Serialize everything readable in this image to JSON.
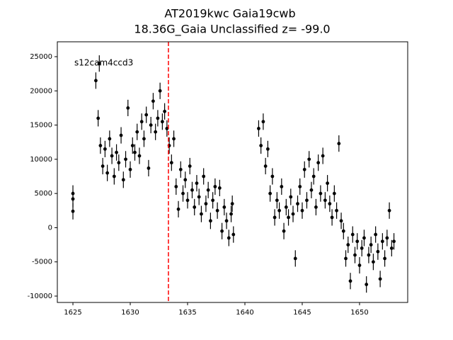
{
  "chart_data": {
    "type": "errorbar-scatter",
    "title": [
      "AT2019kwc  Gaia19cwb",
      "18.36G_Gaia Unclassified z= -99.0"
    ],
    "annotation": "s12cam4ccd3",
    "vline": 1633.33,
    "vline_color": "#ff0000",
    "xlim": [
      1623.64,
      1654.2
    ],
    "ylim": [
      -10932,
      27175
    ],
    "xticks": [
      1625,
      1630,
      1635,
      1640,
      1645,
      1650
    ],
    "yticks": [
      -10000,
      -5000,
      0,
      5000,
      10000,
      15000,
      20000,
      25000
    ],
    "series": [
      {
        "color": "#000000",
        "error": 1200,
        "x": [
          1625.0,
          1625.0,
          1625.0,
          1627.0,
          1627.2,
          1627.3,
          1627.4,
          1627.6,
          1627.8,
          1628.0,
          1628.2,
          1628.4,
          1628.6,
          1628.8,
          1629.0,
          1629.2,
          1629.4,
          1629.6,
          1629.8,
          1630.0,
          1630.2,
          1630.4,
          1630.6,
          1630.8,
          1631.0,
          1631.2,
          1631.4,
          1631.6,
          1631.8,
          1632.0,
          1632.2,
          1632.4,
          1632.6,
          1632.8,
          1633.0,
          1633.2,
          1633.4,
          1633.6,
          1633.8,
          1634.0,
          1634.2,
          1634.4,
          1634.6,
          1634.8,
          1635.0,
          1635.2,
          1635.4,
          1635.6,
          1635.8,
          1636.0,
          1636.2,
          1636.4,
          1636.6,
          1636.8,
          1637.0,
          1637.2,
          1637.4,
          1637.6,
          1637.8,
          1638.0,
          1638.2,
          1638.4,
          1638.6,
          1638.8,
          1638.9,
          1639.0,
          1641.2,
          1641.4,
          1641.6,
          1641.8,
          1642.0,
          1642.2,
          1642.4,
          1642.6,
          1642.8,
          1643.0,
          1643.2,
          1643.4,
          1643.6,
          1643.8,
          1644.0,
          1644.2,
          1644.4,
          1644.6,
          1644.8,
          1645.0,
          1645.2,
          1645.4,
          1645.6,
          1645.8,
          1646.0,
          1646.2,
          1646.4,
          1646.6,
          1646.8,
          1647.0,
          1647.2,
          1647.4,
          1647.6,
          1647.8,
          1648.0,
          1648.2,
          1648.4,
          1648.6,
          1648.8,
          1649.0,
          1649.2,
          1649.4,
          1649.6,
          1649.8,
          1650.0,
          1650.2,
          1650.4,
          1650.6,
          1650.8,
          1651.0,
          1651.2,
          1651.4,
          1651.6,
          1651.8,
          1652.0,
          1652.2,
          1652.4,
          1652.6,
          1652.8,
          1653.0
        ],
        "values": [
          5000,
          4200,
          2400,
          21500,
          16000,
          24000,
          12000,
          9000,
          11500,
          8000,
          13000,
          10500,
          7500,
          11000,
          9500,
          13500,
          7000,
          10000,
          17500,
          8500,
          12000,
          11000,
          14000,
          10500,
          15500,
          13000,
          16500,
          8700,
          15000,
          18500,
          14000,
          16000,
          20000,
          15500,
          17000,
          14500,
          12000,
          9500,
          13000,
          6000,
          2700,
          8500,
          5000,
          7000,
          4000,
          9000,
          5500,
          3000,
          6500,
          4500,
          2000,
          7500,
          3500,
          5500,
          1000,
          4000,
          6000,
          2500,
          5800,
          -500,
          3000,
          1000,
          -1500,
          2000,
          3500,
          -1000,
          14500,
          12000,
          15500,
          9000,
          11500,
          5000,
          7500,
          1500,
          4000,
          2500,
          6000,
          -500,
          3000,
          1500,
          4500,
          2000,
          -4500,
          3500,
          6000,
          2500,
          8500,
          4000,
          10000,
          5500,
          7500,
          3000,
          9500,
          5000,
          10500,
          4000,
          6500,
          3500,
          1500,
          5000,
          2500,
          12300,
          1000,
          -500,
          -4500,
          -2500,
          -7800,
          -1000,
          -4000,
          -2000,
          -5500,
          -3000,
          -1500,
          -8300,
          -4000,
          -2500,
          -5000,
          -1000,
          -3500,
          -7500,
          -2000,
          -4500,
          -1500,
          2500,
          -3000,
          -2000
        ]
      }
    ]
  }
}
